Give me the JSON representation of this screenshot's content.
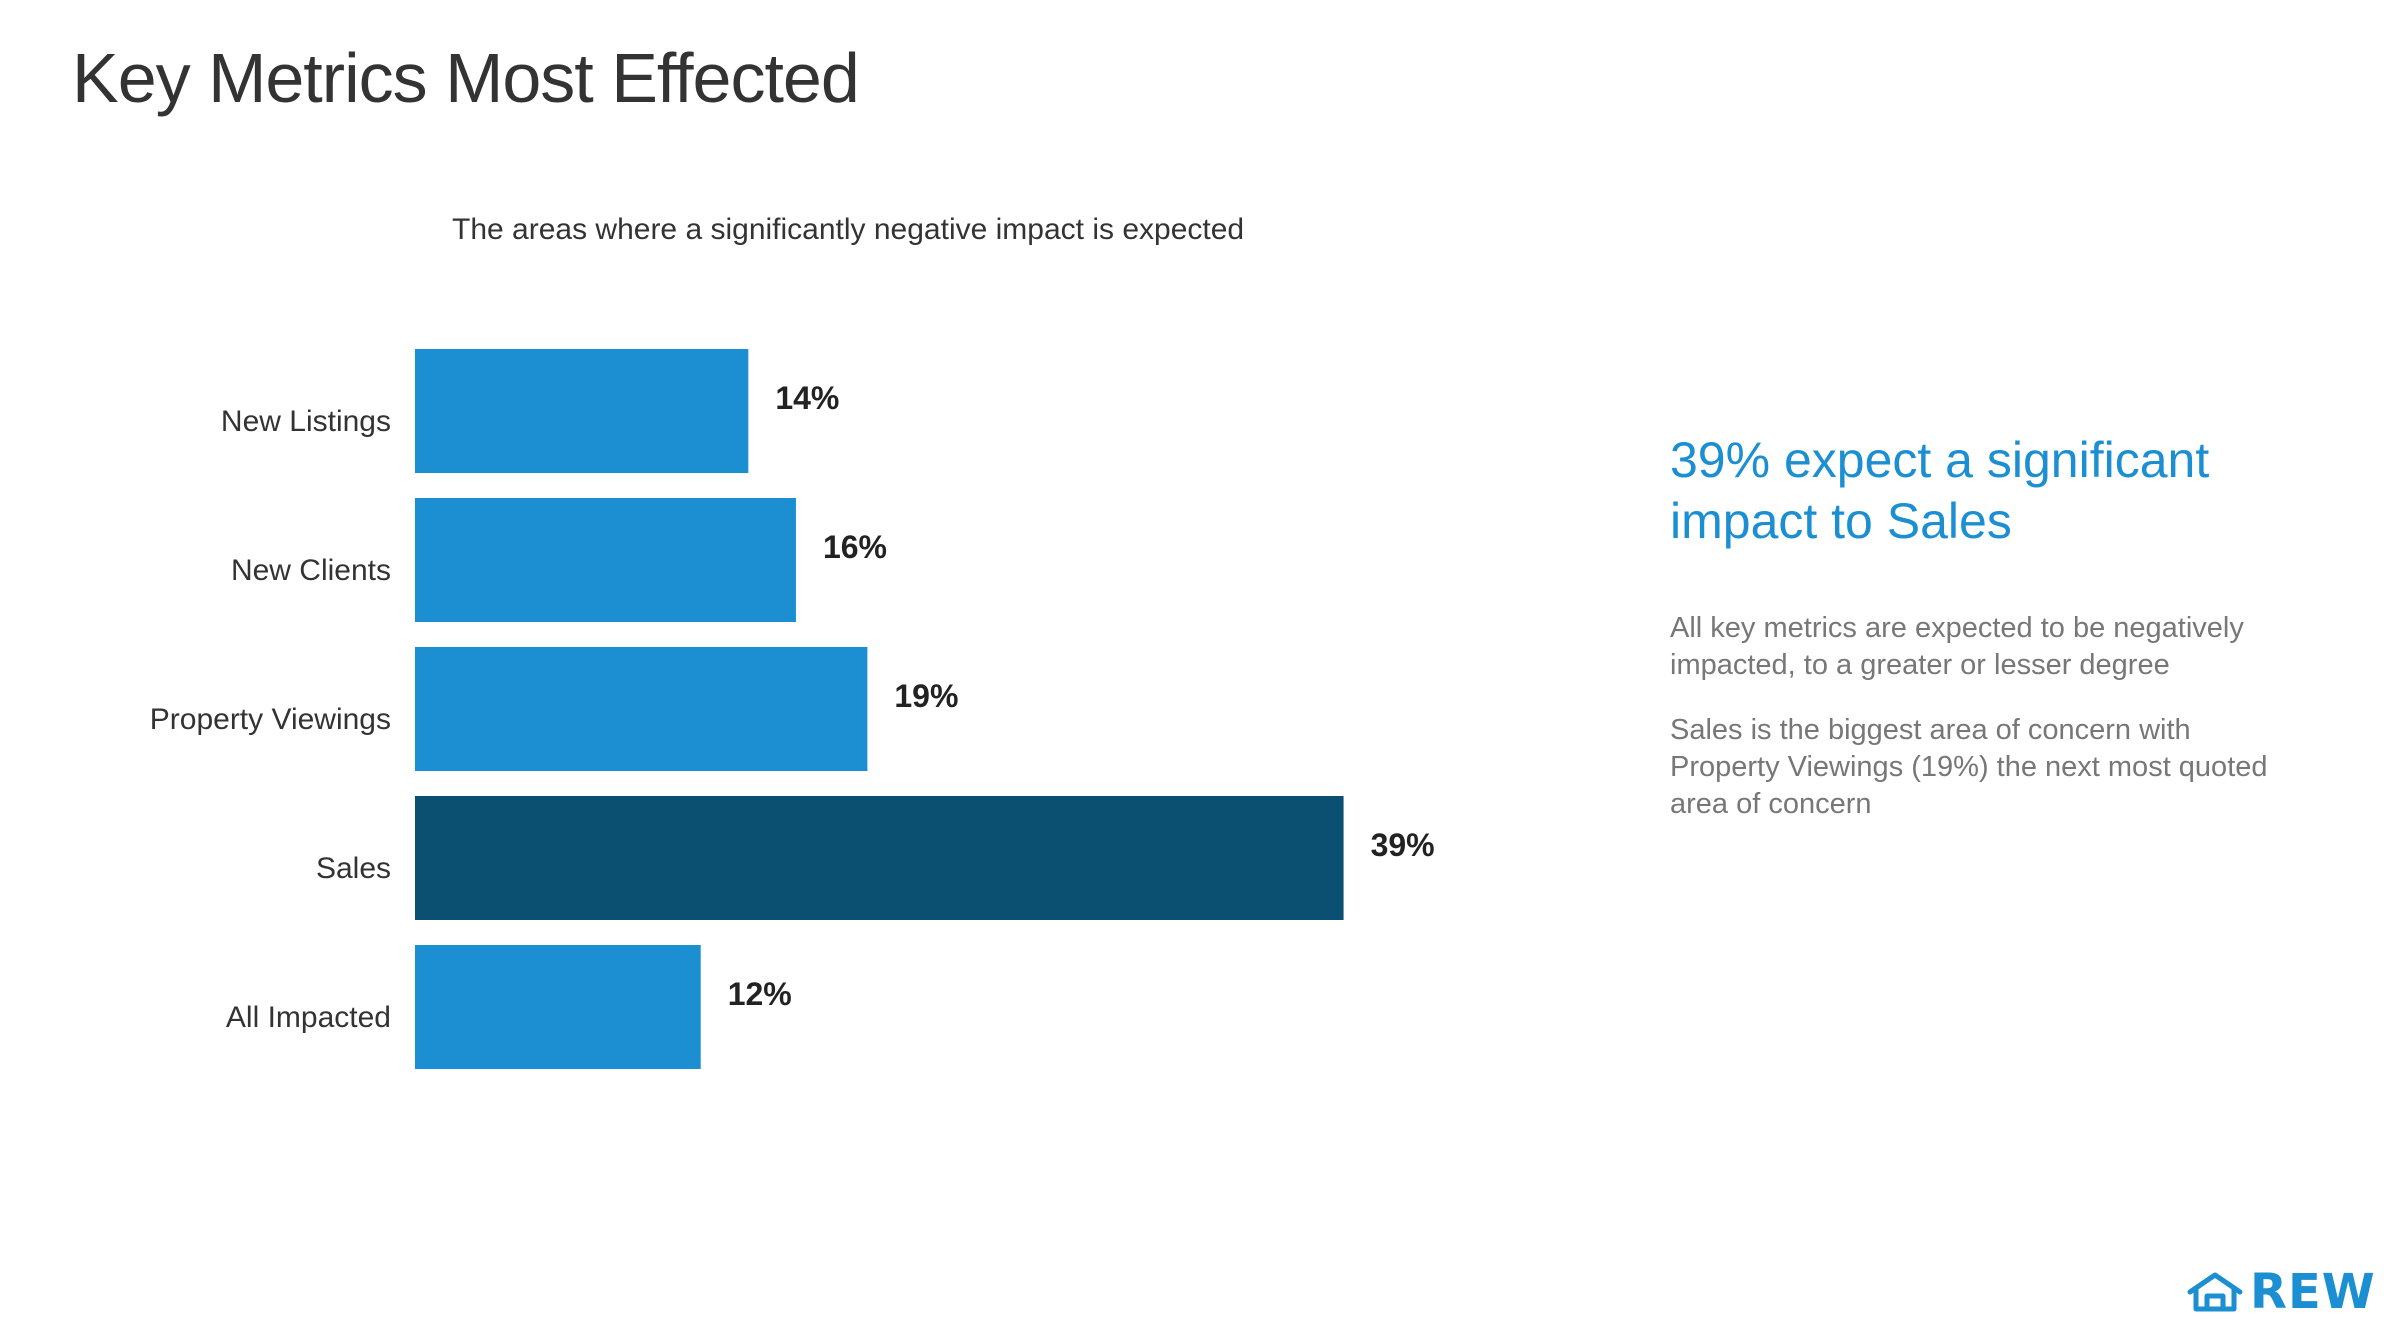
{
  "page": {
    "title": "Key Metrics Most Effected"
  },
  "chart_data": {
    "type": "bar",
    "orientation": "horizontal",
    "title": "The areas where a significantly negative impact is expected",
    "categories": [
      "New Listings",
      "New Clients",
      "Property Viewings",
      "Sales",
      "All Impacted"
    ],
    "values": [
      14,
      16,
      19,
      39,
      12
    ],
    "value_labels": [
      "14%",
      "16%",
      "19%",
      "39%",
      "12%"
    ],
    "highlight_category": "Sales",
    "unit": "%",
    "xlim": [
      0,
      42
    ],
    "grid": false,
    "colors": {
      "bar": "#1b8fd1",
      "highlight": "#0c5071",
      "category_label": "#333333",
      "value_label": "#222222"
    }
  },
  "insights": {
    "headline": "39% expect a significant impact to Sales",
    "paragraphs": [
      "All key metrics are expected to be negatively impacted, to a greater or lesser degree",
      "Sales is the biggest area of concern with Property Viewings (19%) the next most quoted area of concern"
    ]
  },
  "logo": {
    "text": "REW",
    "icon": "house-icon",
    "color": "#1b8fd1"
  }
}
